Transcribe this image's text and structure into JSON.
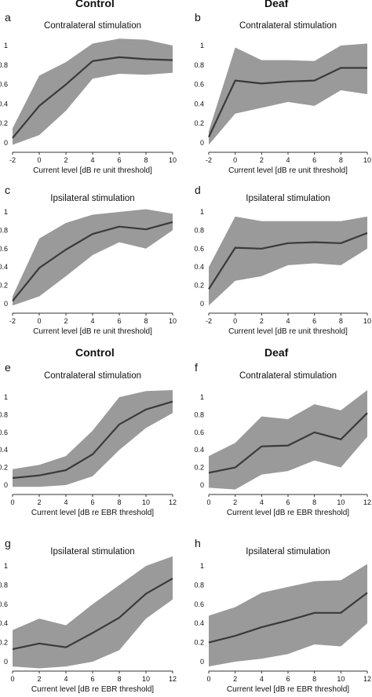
{
  "headers": {
    "top_left": "Control",
    "top_right": "Deaf",
    "mid_left": "Control",
    "mid_right": "Deaf"
  },
  "chart_data": [
    {
      "panel": "a",
      "type": "line",
      "title": "Contralateral stimulation",
      "xlabel": "Current level [dB re unit threshold]",
      "ylabel": "",
      "x": [
        -2,
        0,
        2,
        4,
        6,
        8,
        10
      ],
      "xlim": [
        -2,
        10
      ],
      "ylim": [
        0,
        1
      ],
      "xticks": [
        -2,
        0,
        2,
        4,
        6,
        8,
        10
      ],
      "yticks": [
        0,
        0.2,
        0.4,
        0.6,
        0.8,
        1
      ],
      "mean": [
        0.05,
        0.38,
        0.6,
        0.84,
        0.88,
        0.86,
        0.85
      ],
      "upper": [
        0.15,
        0.69,
        0.83,
        1.02,
        1.07,
        1.06,
        1.0
      ],
      "lower": [
        -0.02,
        0.08,
        0.33,
        0.66,
        0.71,
        0.7,
        0.72
      ],
      "fill_color": "#9a9a9a",
      "line_color": "#3a3a3a"
    },
    {
      "panel": "b",
      "type": "line",
      "title": "Contralateral stimulation",
      "xlabel": "Current level [dB re unit threshold]",
      "ylabel": "",
      "x": [
        -2,
        0,
        2,
        4,
        6,
        8,
        10
      ],
      "xlim": [
        -2,
        10
      ],
      "ylim": [
        0,
        1
      ],
      "xticks": [
        -2,
        0,
        2,
        4,
        6,
        8,
        10
      ],
      "yticks": [
        0,
        0.2,
        0.4,
        0.6,
        0.8,
        1
      ],
      "mean": [
        0.06,
        0.64,
        0.61,
        0.63,
        0.64,
        0.77,
        0.77
      ],
      "upper": [
        0.12,
        0.98,
        0.85,
        0.85,
        0.84,
        1.0,
        1.02
      ],
      "lower": [
        -0.02,
        0.3,
        0.36,
        0.42,
        0.38,
        0.54,
        0.5
      ],
      "fill_color": "#9a9a9a",
      "line_color": "#3a3a3a"
    },
    {
      "panel": "c",
      "type": "line",
      "title": "Ipsilateral stimulation",
      "xlabel": "Current level [dB re unit threshold]",
      "ylabel": "",
      "x": [
        -2,
        0,
        2,
        4,
        6,
        8,
        10
      ],
      "xlim": [
        -2,
        10
      ],
      "ylim": [
        0,
        1
      ],
      "xticks": [
        -2,
        0,
        2,
        4,
        6,
        8,
        10
      ],
      "yticks": [
        0,
        0.2,
        0.4,
        0.6,
        0.8,
        1
      ],
      "mean": [
        0.03,
        0.39,
        0.59,
        0.76,
        0.84,
        0.81,
        0.89
      ],
      "upper": [
        0.08,
        0.71,
        0.88,
        0.97,
        1.0,
        1.03,
        0.98
      ],
      "lower": [
        -0.02,
        0.08,
        0.3,
        0.53,
        0.67,
        0.6,
        0.8
      ],
      "fill_color": "#9a9a9a",
      "line_color": "#3a3a3a"
    },
    {
      "panel": "d",
      "type": "line",
      "title": "Ipsilateral stimulation",
      "xlabel": "Current level [dB re unit threshold]",
      "ylabel": "",
      "x": [
        -2,
        0,
        2,
        4,
        6,
        8,
        10
      ],
      "xlim": [
        -2,
        10
      ],
      "ylim": [
        0,
        1
      ],
      "xticks": [
        -2,
        0,
        2,
        4,
        6,
        8,
        10
      ],
      "yticks": [
        0,
        0.2,
        0.4,
        0.6,
        0.8,
        1
      ],
      "mean": [
        0.16,
        0.61,
        0.6,
        0.66,
        0.67,
        0.66,
        0.77
      ],
      "upper": [
        0.4,
        0.95,
        0.9,
        0.9,
        0.9,
        0.9,
        0.95
      ],
      "lower": [
        -0.02,
        0.25,
        0.3,
        0.42,
        0.44,
        0.42,
        0.6
      ],
      "fill_color": "#9a9a9a",
      "line_color": "#3a3a3a"
    },
    {
      "panel": "e",
      "type": "line",
      "title": "Contralateral stimulation",
      "xlabel": "Current level [dB re EBR threshold]",
      "ylabel": "",
      "x": [
        0,
        2,
        4,
        6,
        8,
        10,
        12
      ],
      "xlim": [
        0,
        12
      ],
      "ylim": [
        0,
        1
      ],
      "xticks": [
        0,
        2,
        4,
        6,
        8,
        10,
        12
      ],
      "yticks": [
        0,
        0.2,
        0.4,
        0.6,
        0.8,
        1
      ],
      "mean": [
        0.08,
        0.11,
        0.17,
        0.35,
        0.69,
        0.86,
        0.95
      ],
      "upper": [
        0.18,
        0.23,
        0.33,
        0.62,
        1.0,
        1.07,
        1.08
      ],
      "lower": [
        -0.02,
        -0.02,
        0.0,
        0.1,
        0.4,
        0.65,
        0.82
      ],
      "fill_color": "#9a9a9a",
      "line_color": "#3a3a3a"
    },
    {
      "panel": "f",
      "type": "line",
      "title": "Contralateral stimulation",
      "xlabel": "Current level [dB re EBR threshold]",
      "ylabel": "",
      "x": [
        0,
        2,
        4,
        6,
        8,
        10,
        12
      ],
      "xlim": [
        0,
        12
      ],
      "ylim": [
        0,
        1
      ],
      "xticks": [
        0,
        2,
        4,
        6,
        8,
        10,
        12
      ],
      "yticks": [
        0,
        0.2,
        0.4,
        0.6,
        0.8,
        1
      ],
      "mean": [
        0.14,
        0.2,
        0.44,
        0.45,
        0.6,
        0.52,
        0.82
      ],
      "upper": [
        0.33,
        0.48,
        0.78,
        0.75,
        0.92,
        0.85,
        1.08
      ],
      "lower": [
        -0.03,
        -0.05,
        0.12,
        0.16,
        0.28,
        0.2,
        0.55
      ],
      "fill_color": "#9a9a9a",
      "line_color": "#3a3a3a"
    },
    {
      "panel": "g",
      "type": "line",
      "title": "Ipsilateral stimulation",
      "xlabel": "Current level [dB re EBR threshold]",
      "ylabel": "",
      "x": [
        0,
        2,
        4,
        6,
        8,
        10,
        12
      ],
      "xlim": [
        0,
        12
      ],
      "ylim": [
        0,
        1
      ],
      "xticks": [
        0,
        2,
        4,
        6,
        8,
        10,
        12
      ],
      "yticks": [
        0,
        0.2,
        0.4,
        0.6,
        0.8,
        1
      ],
      "mean": [
        0.13,
        0.19,
        0.15,
        0.3,
        0.46,
        0.71,
        0.87
      ],
      "upper": [
        0.33,
        0.45,
        0.38,
        0.6,
        0.8,
        1.0,
        1.1
      ],
      "lower": [
        -0.05,
        -0.07,
        -0.05,
        0.0,
        0.12,
        0.45,
        0.65
      ],
      "fill_color": "#9a9a9a",
      "line_color": "#3a3a3a"
    },
    {
      "panel": "h",
      "type": "line",
      "title": "Ipsilateral stimulation",
      "xlabel": "Current level [dB re EBR threshold]",
      "ylabel": "",
      "x": [
        0,
        2,
        4,
        6,
        8,
        10,
        12
      ],
      "xlim": [
        0,
        12
      ],
      "ylim": [
        0,
        1
      ],
      "xticks": [
        0,
        2,
        4,
        6,
        8,
        10,
        12
      ],
      "yticks": [
        0,
        0.2,
        0.4,
        0.6,
        0.8,
        1
      ],
      "mean": [
        0.2,
        0.27,
        0.36,
        0.43,
        0.51,
        0.51,
        0.72
      ],
      "upper": [
        0.48,
        0.57,
        0.72,
        0.78,
        0.84,
        0.85,
        1.02
      ],
      "lower": [
        -0.05,
        0.0,
        0.03,
        0.08,
        0.18,
        0.16,
        0.4
      ],
      "fill_color": "#9a9a9a",
      "line_color": "#3a3a3a"
    }
  ]
}
